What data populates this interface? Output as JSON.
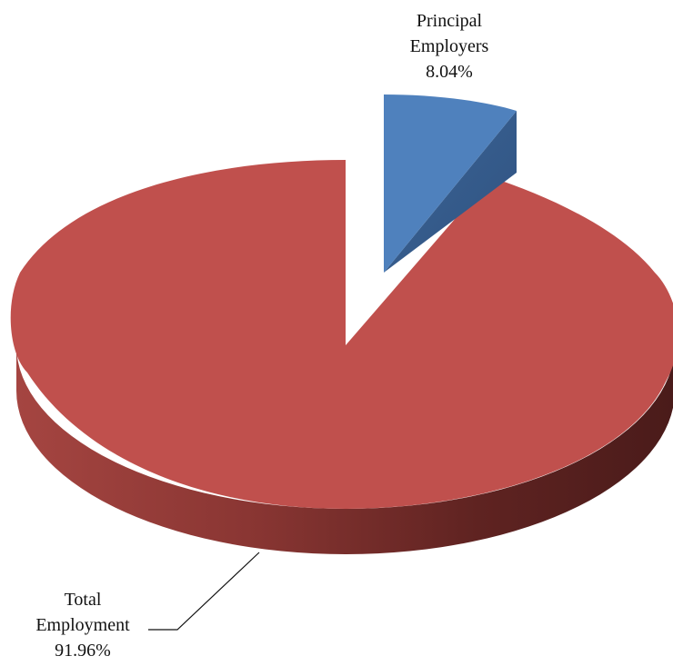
{
  "chart_data": {
    "type": "pie",
    "style": "3d-exploded",
    "slices": [
      {
        "label_lines": [
          "Principal",
          "Employers"
        ],
        "percent_label": "8.04%",
        "value": 8.04,
        "color": "#4f81bd",
        "exploded": true
      },
      {
        "label_lines": [
          "Total",
          "Employment"
        ],
        "percent_label": "91.96%",
        "value": 91.96,
        "color": "#c0504d",
        "exploded": false
      }
    ]
  }
}
